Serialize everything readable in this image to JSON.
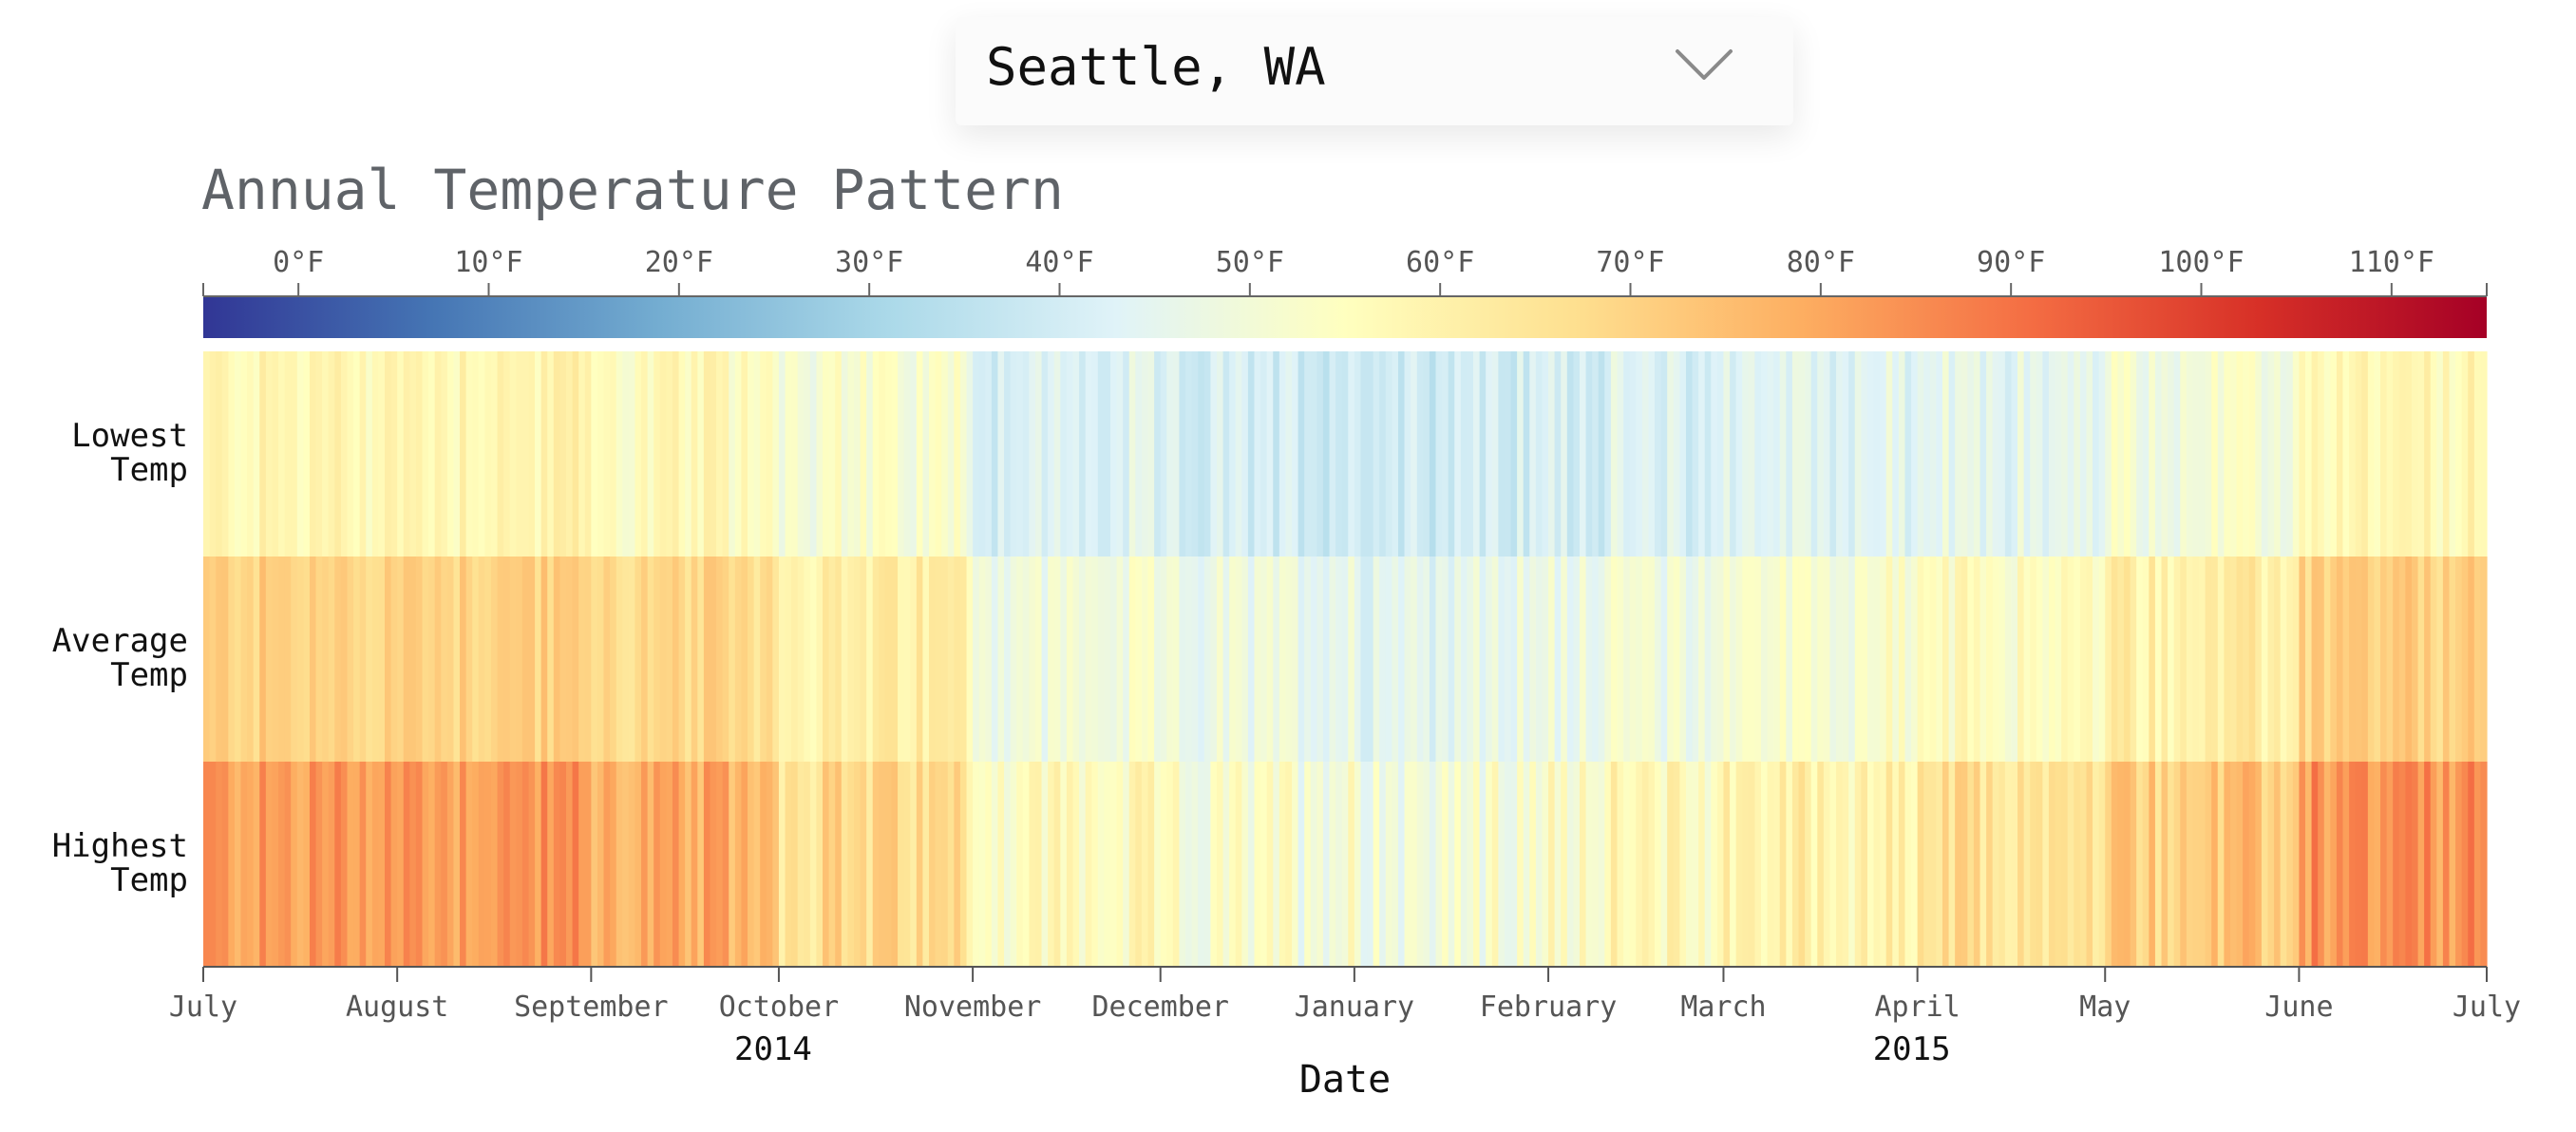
{
  "location": {
    "selected": "Seattle, WA",
    "options": [
      "Seattle, WA"
    ]
  },
  "colors": {
    "title": "#5f6368",
    "axis": "#555555",
    "axis_text": "#333333",
    "scale": [
      "#313695",
      "#4575b4",
      "#74add1",
      "#abd9e9",
      "#e0f3f8",
      "#ffffbf",
      "#fee090",
      "#fdae61",
      "#f46d43",
      "#d73027",
      "#a50026"
    ]
  },
  "chart_data": {
    "type": "heatmap",
    "title": "Annual Temperature Pattern",
    "xlabel": "Date",
    "ylabel": "",
    "legend_placement": "top",
    "grid": false,
    "color_scale": {
      "domain": [
        -5,
        115
      ],
      "unit": "°F",
      "ticks": [
        0,
        10,
        20,
        30,
        40,
        50,
        60,
        70,
        80,
        90,
        100,
        110
      ],
      "tick_labels": [
        "0°F",
        "10°F",
        "20°F",
        "30°F",
        "40°F",
        "50°F",
        "60°F",
        "70°F",
        "80°F",
        "90°F",
        "100°F",
        "110°F"
      ]
    },
    "x_range": [
      "2014-07-01",
      "2015-07-01"
    ],
    "x_ticks": [
      {
        "date": "2014-07-01",
        "label": "July"
      },
      {
        "date": "2014-08-01",
        "label": "August"
      },
      {
        "date": "2014-09-01",
        "label": "September"
      },
      {
        "date": "2014-10-01",
        "label": "October"
      },
      {
        "date": "2014-11-01",
        "label": "November"
      },
      {
        "date": "2014-12-01",
        "label": "December"
      },
      {
        "date": "2015-01-01",
        "label": "January"
      },
      {
        "date": "2015-02-01",
        "label": "February"
      },
      {
        "date": "2015-03-01",
        "label": "March"
      },
      {
        "date": "2015-04-01",
        "label": "April"
      },
      {
        "date": "2015-05-01",
        "label": "May"
      },
      {
        "date": "2015-06-01",
        "label": "June"
      },
      {
        "date": "2015-07-01",
        "label": "July"
      }
    ],
    "year_labels": [
      {
        "date": "2014-10-01",
        "label": "2014"
      },
      {
        "date": "2015-04-01",
        "label": "2015"
      }
    ],
    "rows": [
      {
        "key": "min",
        "label": [
          "Lowest",
          "Temp"
        ]
      },
      {
        "key": "avg",
        "label": [
          "Average",
          "Temp"
        ]
      },
      {
        "key": "max",
        "label": [
          "Highest",
          "Temp"
        ]
      }
    ],
    "monthly_means": [
      {
        "month": "2014-07",
        "min": 58,
        "avg": 70,
        "max": 82
      },
      {
        "month": "2014-08",
        "min": 59,
        "avg": 71,
        "max": 83
      },
      {
        "month": "2014-09",
        "min": 56,
        "avg": 68,
        "max": 78
      },
      {
        "month": "2014-10",
        "min": 52,
        "avg": 61,
        "max": 67
      },
      {
        "month": "2014-11",
        "min": 42,
        "avg": 49,
        "max": 55
      },
      {
        "month": "2014-12",
        "min": 40,
        "avg": 47,
        "max": 52
      },
      {
        "month": "2015-01",
        "min": 40,
        "avg": 46,
        "max": 51
      },
      {
        "month": "2015-02",
        "min": 42,
        "avg": 49,
        "max": 56
      },
      {
        "month": "2015-03",
        "min": 44,
        "avg": 52,
        "max": 60
      },
      {
        "month": "2015-04",
        "min": 45,
        "avg": 55,
        "max": 65
      },
      {
        "month": "2015-05",
        "min": 50,
        "avg": 61,
        "max": 72
      },
      {
        "month": "2015-06",
        "min": 57,
        "avg": 70,
        "max": 83
      }
    ]
  }
}
